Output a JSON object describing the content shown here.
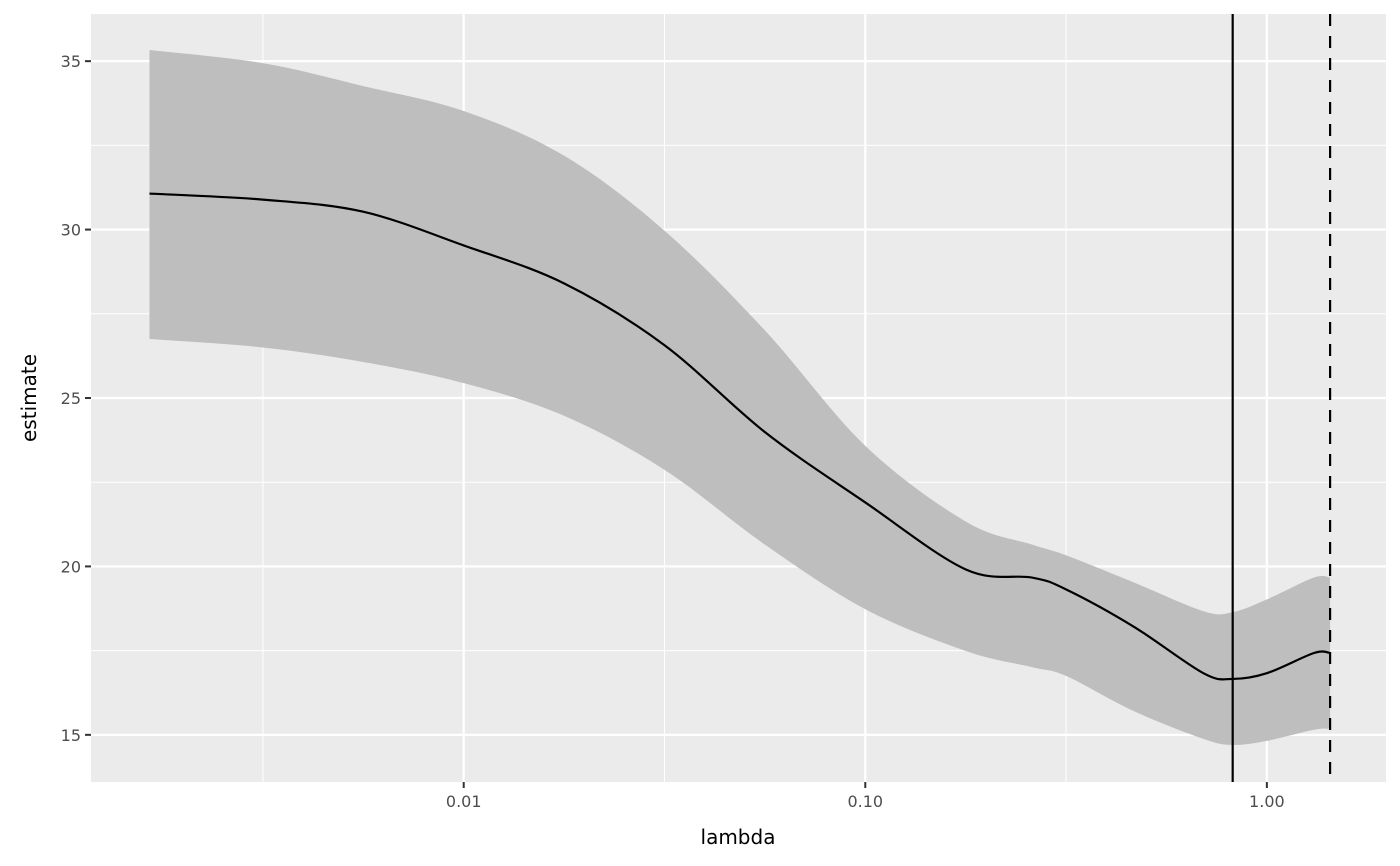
{
  "chart_data": {
    "type": "line",
    "xlabel": "lambda",
    "ylabel": "estimate",
    "x_scale": "log10",
    "xlim": [
      0.00118,
      1.98
    ],
    "ylim": [
      13.6,
      36.4
    ],
    "x_ticks": [
      0.01,
      0.1,
      1.0
    ],
    "x_tick_labels": [
      "0.01",
      "0.10",
      "1.00"
    ],
    "y_ticks": [
      15,
      20,
      25,
      30,
      35
    ],
    "y_tick_labels": [
      "15",
      "20",
      "25",
      "30",
      "35"
    ],
    "grid": true,
    "series": [
      {
        "x": [
          0.00165,
          0.00316,
          0.00562,
          0.01,
          0.0178,
          0.0316,
          0.0562,
          0.1,
          0.178,
          0.26,
          0.316,
          0.465,
          0.695,
          0.822,
          1.0,
          1.31,
          1.437
        ],
        "y": [
          31.07,
          30.89,
          30.53,
          29.53,
          28.4,
          26.57,
          23.99,
          21.9,
          19.91,
          19.67,
          19.32,
          18.22,
          16.83,
          16.66,
          16.83,
          17.43,
          17.43
        ],
        "lower": [
          26.75,
          26.5,
          26.07,
          25.44,
          24.47,
          22.87,
          20.65,
          18.73,
          17.49,
          17.01,
          16.75,
          15.71,
          14.88,
          14.7,
          14.82,
          15.15,
          15.18
        ],
        "upper": [
          35.33,
          34.94,
          34.26,
          33.52,
          32.19,
          29.97,
          27.01,
          23.58,
          21.33,
          20.65,
          20.33,
          19.53,
          18.67,
          18.64,
          19.02,
          19.67,
          19.67
        ]
      }
    ],
    "vlines": [
      {
        "x": 0.822,
        "linetype": "solid"
      },
      {
        "x": 1.437,
        "linetype": "dashed"
      }
    ],
    "colors": {
      "panel": "#ebebeb",
      "grid": "#ffffff",
      "ribbon": "#bebebe",
      "line": "#000000"
    }
  }
}
